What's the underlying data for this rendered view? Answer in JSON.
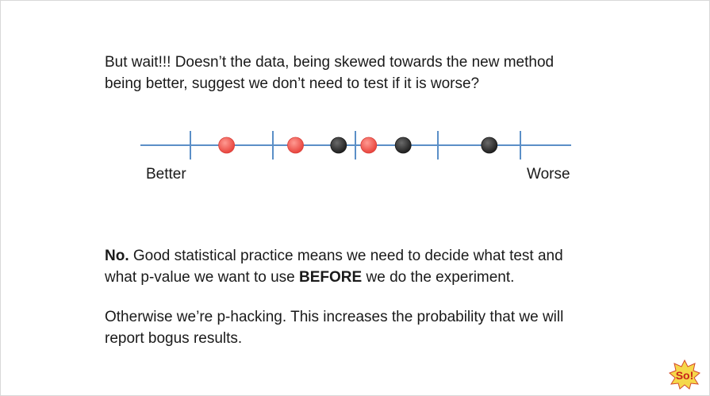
{
  "question": {
    "line1": "But wait!!! Doesn’t the data, being skewed towards the new method",
    "line2": "being better, suggest we don’t need to test if it is worse?"
  },
  "diagram": {
    "left_label": "Better",
    "right_label": "Worse",
    "points": [
      {
        "value": 0.2,
        "color": "red"
      },
      {
        "value": 0.36,
        "color": "red"
      },
      {
        "value": 0.46,
        "color": "black"
      },
      {
        "value": 0.53,
        "color": "red"
      },
      {
        "value": 0.61,
        "color": "black"
      },
      {
        "value": 0.81,
        "color": "black"
      }
    ],
    "colors": {
      "axis": "#5b8fc7",
      "red": "#f15a55",
      "black": "#2e2e2e"
    }
  },
  "answer": {
    "bold_start": "No.",
    "line1_rest": " Good statistical practice means we need to decide what test and",
    "line2_start": "what p-value we want to use ",
    "line2_bold": "BEFORE",
    "line2_end": " we do the experiment."
  },
  "otherwise": {
    "line1": "Otherwise we’re p-hacking. This increases the probability that we will",
    "line2": "report bogus results."
  },
  "logo": {
    "text": "So!"
  }
}
